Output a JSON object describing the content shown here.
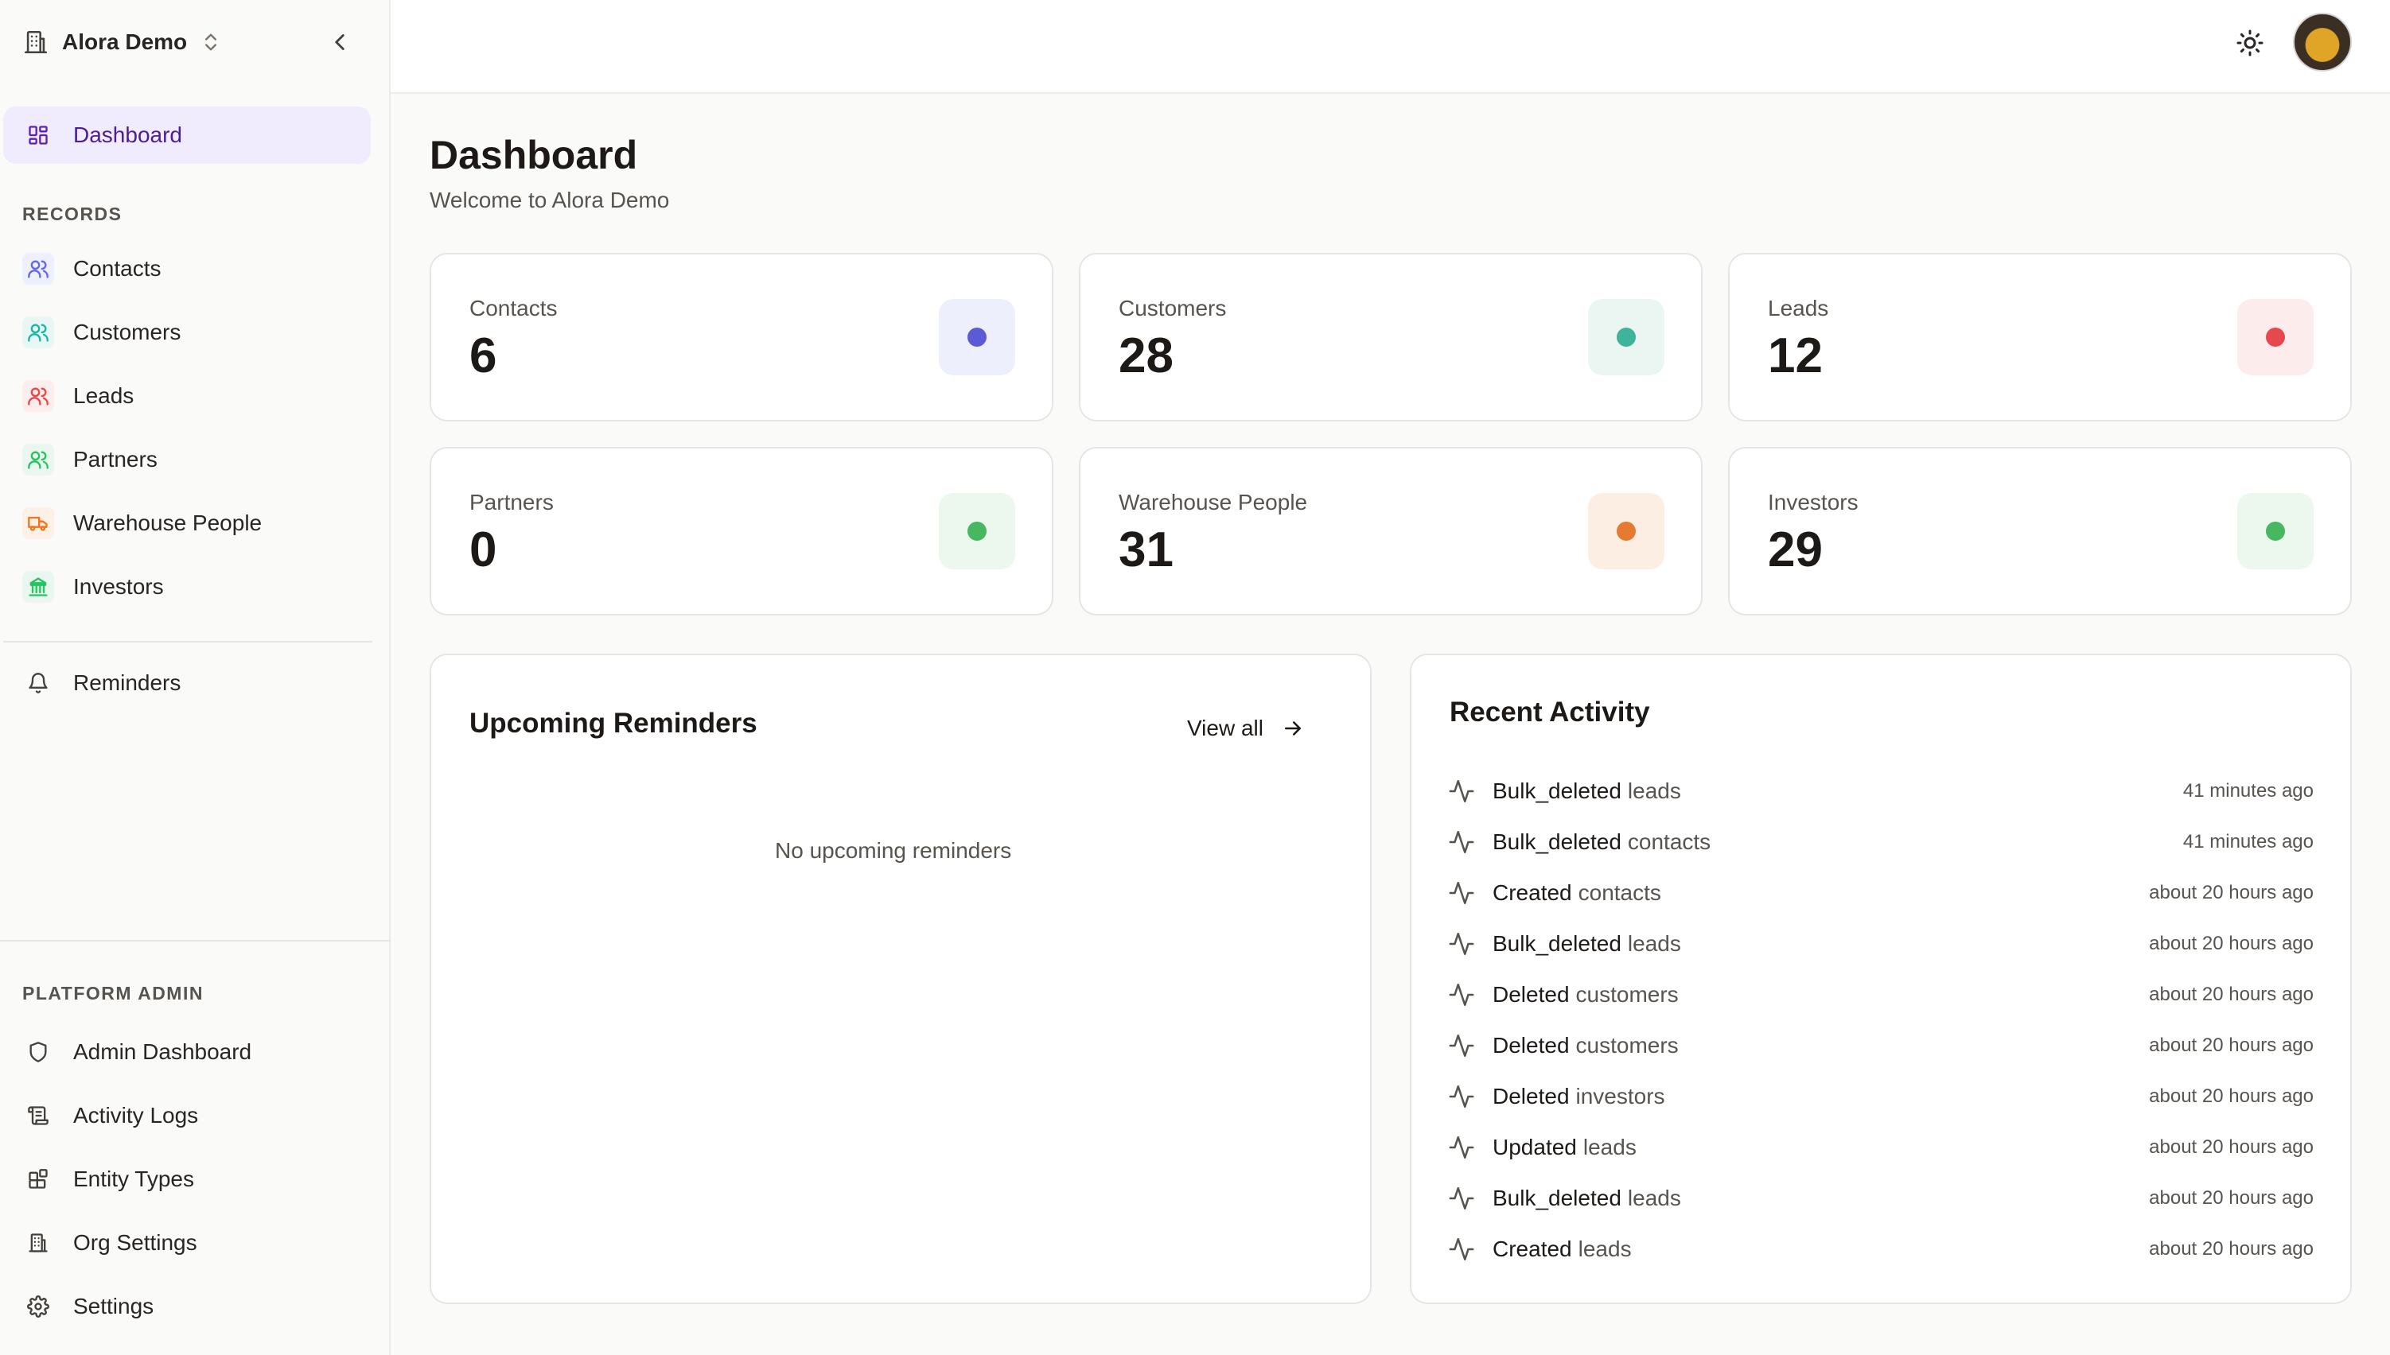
{
  "org": {
    "name": "Alora Demo"
  },
  "nav": {
    "dashboard": "Dashboard",
    "records_label": "RECORDS",
    "records": [
      {
        "label": "Contacts",
        "color": "#6366f1",
        "bg": "#eef0fe"
      },
      {
        "label": "Customers",
        "color": "#14b8a6",
        "bg": "#e8f7f4"
      },
      {
        "label": "Leads",
        "color": "#ef4444",
        "bg": "#fdeeee"
      },
      {
        "label": "Partners",
        "color": "#22c55e",
        "bg": "#eaf7ee"
      },
      {
        "label": "Warehouse People",
        "color": "#f97316",
        "bg": "#fdf0e6"
      },
      {
        "label": "Investors",
        "color": "#22c55e",
        "bg": "#eaf7ee"
      }
    ],
    "reminders": "Reminders",
    "platform_label": "PLATFORM ADMIN",
    "platform": [
      {
        "label": "Admin Dashboard",
        "icon": "shield-icon"
      },
      {
        "label": "Activity Logs",
        "icon": "scroll-icon"
      },
      {
        "label": "Entity Types",
        "icon": "shapes-icon"
      },
      {
        "label": "Org Settings",
        "icon": "building-icon"
      },
      {
        "label": "Settings",
        "icon": "gear-icon"
      }
    ]
  },
  "header": {
    "title": "Dashboard",
    "subtitle": "Welcome to Alora Demo"
  },
  "stats": [
    {
      "label": "Contacts",
      "value": "6",
      "color": "#5b5bd6",
      "bg": "#eeeffc"
    },
    {
      "label": "Customers",
      "value": "28",
      "color": "#3fb39b",
      "bg": "#ebf6f3"
    },
    {
      "label": "Leads",
      "value": "12",
      "color": "#e5484d",
      "bg": "#fcecec"
    },
    {
      "label": "Partners",
      "value": "0",
      "color": "#46b85f",
      "bg": "#ecf7ee"
    },
    {
      "label": "Warehouse People",
      "value": "31",
      "color": "#e67a30",
      "bg": "#fdeee3"
    },
    {
      "label": "Investors",
      "value": "29",
      "color": "#46b85f",
      "bg": "#ecf7ee"
    }
  ],
  "reminders_panel": {
    "title": "Upcoming Reminders",
    "view_all": "View all",
    "empty": "No upcoming reminders"
  },
  "activity_panel": {
    "title": "Recent Activity",
    "items": [
      {
        "action": "Bulk_deleted",
        "entity": "leads",
        "time": "41 minutes ago"
      },
      {
        "action": "Bulk_deleted",
        "entity": "contacts",
        "time": "41 minutes ago"
      },
      {
        "action": "Created",
        "entity": "contacts",
        "time": "about 20 hours ago"
      },
      {
        "action": "Bulk_deleted",
        "entity": "leads",
        "time": "about 20 hours ago"
      },
      {
        "action": "Deleted",
        "entity": "customers",
        "time": "about 20 hours ago"
      },
      {
        "action": "Deleted",
        "entity": "customers",
        "time": "about 20 hours ago"
      },
      {
        "action": "Deleted",
        "entity": "investors",
        "time": "about 20 hours ago"
      },
      {
        "action": "Updated",
        "entity": "leads",
        "time": "about 20 hours ago"
      },
      {
        "action": "Bulk_deleted",
        "entity": "leads",
        "time": "about 20 hours ago"
      },
      {
        "action": "Created",
        "entity": "leads",
        "time": "about 20 hours ago"
      }
    ]
  }
}
